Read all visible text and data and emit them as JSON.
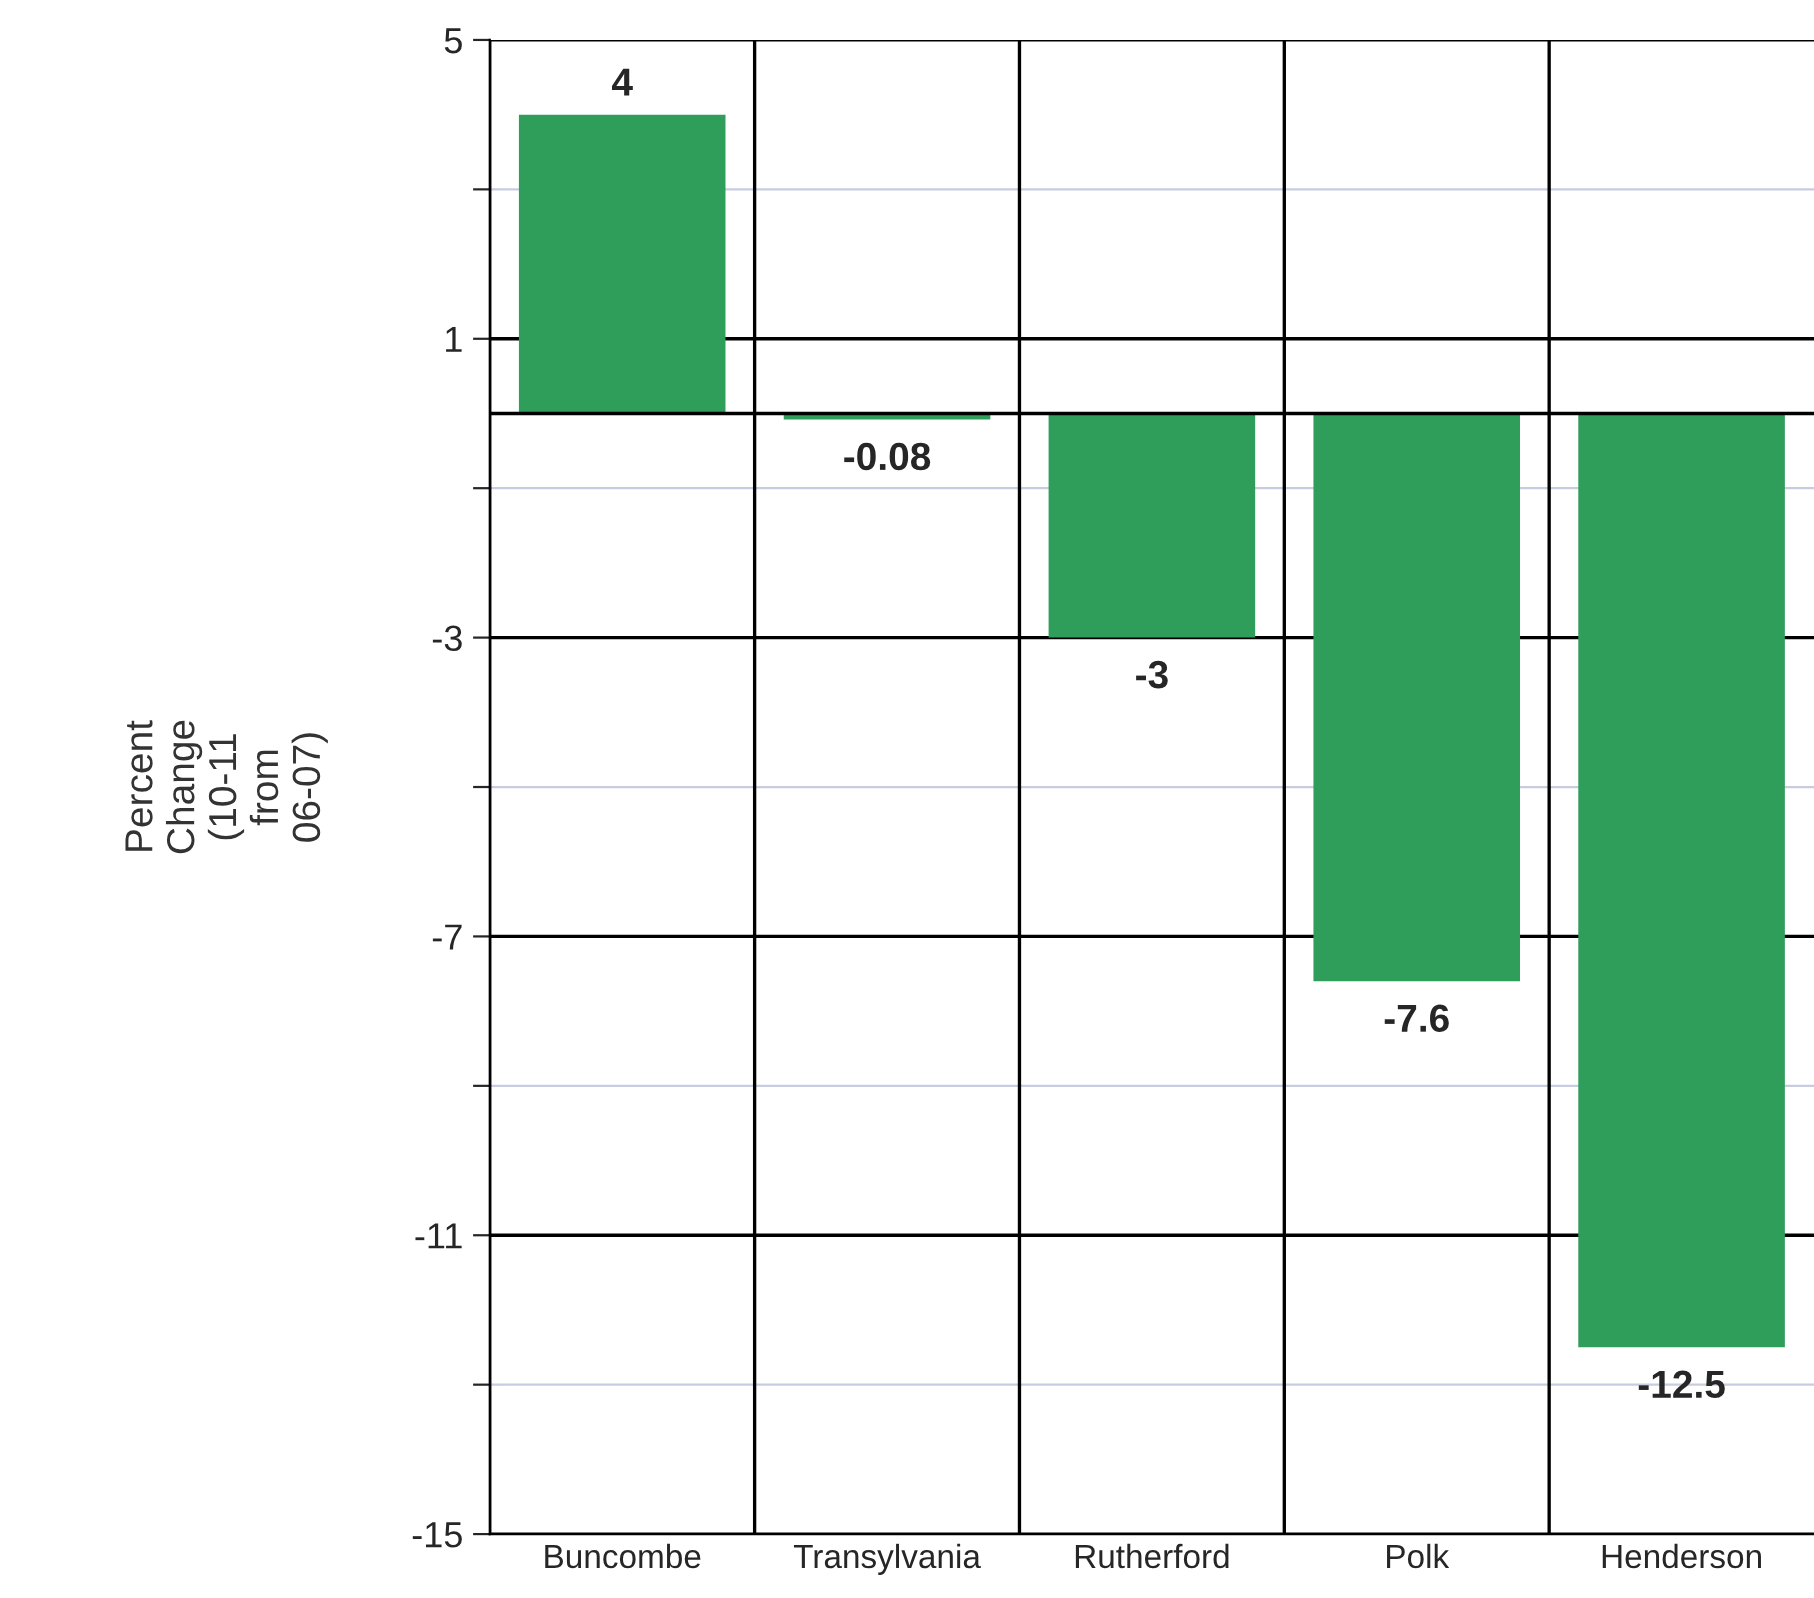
{
  "chart_data": {
    "type": "bar",
    "ylabel": "Percent Change (10-11 from 06-07)",
    "categories": [
      "Buncombe",
      "Transylvania",
      "Rutherford",
      "Polk",
      "Henderson"
    ],
    "values": [
      4,
      -0.08,
      -3,
      -7.6,
      -12.5
    ],
    "color": "#2e9e5a",
    "ylim": [
      -15,
      5
    ],
    "yticks": [
      -15,
      {
        "value": -13,
        "label": null
      },
      -11,
      {
        "value": -9,
        "label": null
      },
      -7,
      {
        "value": -5,
        "label": null
      },
      -3,
      {
        "value": -1,
        "label": null
      },
      1,
      {
        "value": 3,
        "label": null
      },
      5
    ],
    "ref_lines": [
      {
        "axis": "y",
        "value": 0
      }
    ],
    "grid": true,
    "data_labels": true
  }
}
